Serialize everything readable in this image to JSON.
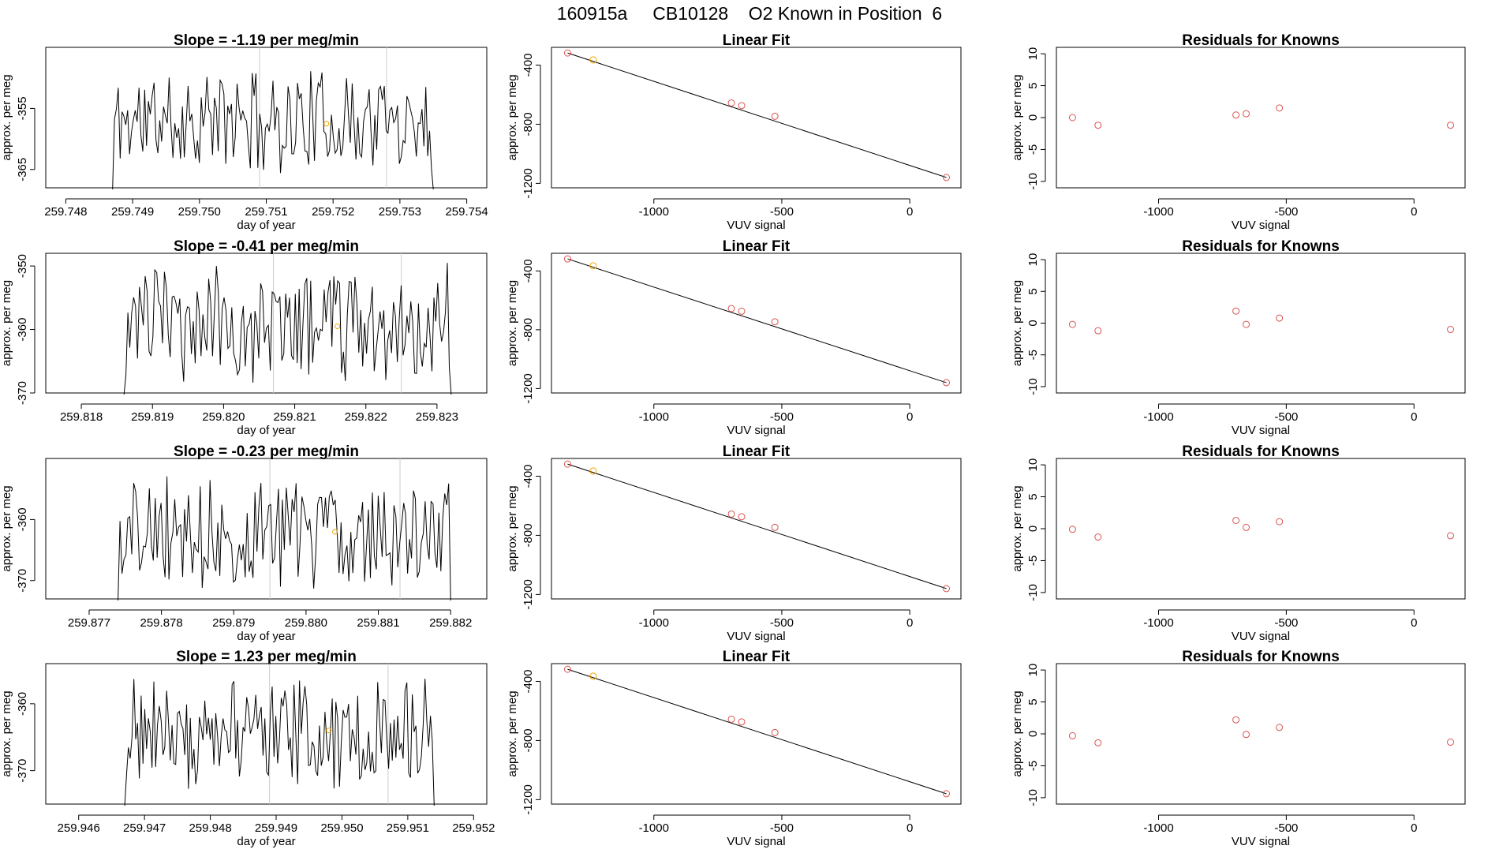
{
  "header": {
    "title": "160915a     CB10128    O2 Known in Position  6",
    "run_id": "160915a",
    "cylinder": "CB10128",
    "label": "O2 Known in Position  6"
  },
  "colors": {
    "trace": "#000000",
    "known_point": "#d9534f",
    "highlight_point": "#f0a500",
    "reference_line": "#cccccc",
    "fit_line": "#000000"
  },
  "chart_data": [
    {
      "panel": "row1-timeseries",
      "type": "line",
      "title": "Slope =  -1.19  per meg/min",
      "xlabel": "day of year",
      "ylabel": "approx. per meg",
      "xlim": [
        259.7477,
        259.7543
      ],
      "ylim": [
        -368,
        -345
      ],
      "xticks": [
        259.748,
        259.749,
        259.75,
        259.751,
        259.752,
        259.753,
        259.754
      ],
      "xtick_labels": [
        "259.748",
        "259.749",
        "259.750",
        "259.751",
        "259.752",
        "259.753",
        "259.754"
      ],
      "yticks": [
        -365,
        -355
      ],
      "ytick_labels": [
        "-365",
        "-355"
      ],
      "x_start": 259.7487,
      "x_end": 259.7535,
      "vlines": [
        259.7509,
        259.7528
      ],
      "marker": {
        "x": 259.7519,
        "y": -357.5
      },
      "seed": 11,
      "center": -357,
      "amp": 7.5
    },
    {
      "panel": "row1-linearfit",
      "type": "scatter",
      "title": "Linear Fit",
      "xlabel": "VUV signal",
      "ylabel": "approx. per meg",
      "xlim": [
        -1400,
        200
      ],
      "ylim": [
        -1230,
        -280
      ],
      "xticks": [
        -1000,
        -500,
        0
      ],
      "xtick_labels": [
        "-1000",
        "-500",
        "0"
      ],
      "yticks": [
        -1200,
        -800,
        -400
      ],
      "ytick_labels": [
        "-1200",
        "-800",
        "-400"
      ],
      "points": [
        {
          "x": -1337,
          "y": -318,
          "color": "known"
        },
        {
          "x": -1237,
          "y": -365,
          "color": "highlight"
        },
        {
          "x": -697,
          "y": -656,
          "color": "known"
        },
        {
          "x": -657,
          "y": -674,
          "color": "known"
        },
        {
          "x": -527,
          "y": -746,
          "color": "known"
        },
        {
          "x": 143,
          "y": -1160,
          "color": "known"
        }
      ],
      "fit_line": {
        "x1": -1337,
        "y1": -318,
        "x2": 143,
        "y2": -1160
      }
    },
    {
      "panel": "row1-residuals",
      "type": "scatter",
      "title": "Residuals for Knowns",
      "xlabel": "VUV signal",
      "ylabel": "approx. per meg",
      "xlim": [
        -1400,
        200
      ],
      "ylim": [
        -11,
        11
      ],
      "xticks": [
        -1000,
        -500,
        0
      ],
      "xtick_labels": [
        "-1000",
        "-500",
        "0"
      ],
      "yticks": [
        -10,
        -5,
        0,
        5,
        10
      ],
      "ytick_labels": [
        "-10",
        "-5",
        "0",
        "5",
        "10"
      ],
      "points": [
        {
          "x": -1337,
          "y": 0.0
        },
        {
          "x": -1237,
          "y": -1.2
        },
        {
          "x": -697,
          "y": 0.4
        },
        {
          "x": -657,
          "y": 0.6
        },
        {
          "x": -527,
          "y": 1.5
        },
        {
          "x": 143,
          "y": -1.2
        }
      ]
    },
    {
      "panel": "row2-timeseries",
      "type": "line",
      "title": "Slope =  -0.41  per meg/min",
      "xlabel": "day of year",
      "ylabel": "approx. per meg",
      "xlim": [
        259.8175,
        259.8237
      ],
      "ylim": [
        -370,
        -348
      ],
      "xticks": [
        259.818,
        259.819,
        259.82,
        259.821,
        259.822,
        259.823
      ],
      "xtick_labels": [
        "259.818",
        "259.819",
        "259.820",
        "259.821",
        "259.822",
        "259.823"
      ],
      "yticks": [
        -370,
        -360,
        -350
      ],
      "ytick_labels": [
        "-370",
        "-360",
        "-350"
      ],
      "x_start": 259.8186,
      "x_end": 259.8232,
      "vlines": [
        259.8207,
        259.8225
      ],
      "marker": {
        "x": 259.8216,
        "y": -359.5
      },
      "seed": 23,
      "center": -359,
      "amp": 8.5
    },
    {
      "panel": "row2-linearfit",
      "type": "scatter",
      "title": "Linear Fit",
      "xlabel": "VUV signal",
      "ylabel": "approx. per meg",
      "xlim": [
        -1400,
        200
      ],
      "ylim": [
        -1230,
        -280
      ],
      "xticks": [
        -1000,
        -500,
        0
      ],
      "xtick_labels": [
        "-1000",
        "-500",
        "0"
      ],
      "yticks": [
        -1200,
        -800,
        -400
      ],
      "ytick_labels": [
        "-1200",
        "-800",
        "-400"
      ],
      "points": [
        {
          "x": -1337,
          "y": -318,
          "color": "known"
        },
        {
          "x": -1237,
          "y": -365,
          "color": "highlight"
        },
        {
          "x": -697,
          "y": -656,
          "color": "known"
        },
        {
          "x": -657,
          "y": -674,
          "color": "known"
        },
        {
          "x": -527,
          "y": -746,
          "color": "known"
        },
        {
          "x": 143,
          "y": -1160,
          "color": "known"
        }
      ],
      "fit_line": {
        "x1": -1337,
        "y1": -318,
        "x2": 143,
        "y2": -1160
      }
    },
    {
      "panel": "row2-residuals",
      "type": "scatter",
      "title": "Residuals for Knowns",
      "xlabel": "VUV signal",
      "ylabel": "approx. per meg",
      "xlim": [
        -1400,
        200
      ],
      "ylim": [
        -11,
        11
      ],
      "xticks": [
        -1000,
        -500,
        0
      ],
      "xtick_labels": [
        "-1000",
        "-500",
        "0"
      ],
      "yticks": [
        -10,
        -5,
        0,
        5,
        10
      ],
      "ytick_labels": [
        "-10",
        "-5",
        "0",
        "5",
        "10"
      ],
      "points": [
        {
          "x": -1337,
          "y": -0.2
        },
        {
          "x": -1237,
          "y": -1.2
        },
        {
          "x": -697,
          "y": 1.9
        },
        {
          "x": -657,
          "y": -0.2
        },
        {
          "x": -527,
          "y": 0.8
        },
        {
          "x": 143,
          "y": -1.0
        }
      ]
    },
    {
      "panel": "row3-timeseries",
      "type": "line",
      "title": "Slope =  -0.23  per meg/min",
      "xlabel": "day of year",
      "ylabel": "approx. per meg",
      "xlim": [
        259.8764,
        259.8825
      ],
      "ylim": [
        -373,
        -350
      ],
      "xticks": [
        259.877,
        259.878,
        259.879,
        259.88,
        259.881,
        259.882
      ],
      "xtick_labels": [
        "259.877",
        "259.878",
        "259.879",
        "259.880",
        "259.881",
        "259.882"
      ],
      "yticks": [
        -370,
        -360
      ],
      "ytick_labels": [
        "-370",
        "-360"
      ],
      "x_start": 259.8774,
      "x_end": 259.882,
      "vlines": [
        259.8795,
        259.8813
      ],
      "marker": {
        "x": 259.8804,
        "y": -362.0
      },
      "seed": 37,
      "center": -362,
      "amp": 8.0
    },
    {
      "panel": "row3-linearfit",
      "type": "scatter",
      "title": "Linear Fit",
      "xlabel": "VUV signal",
      "ylabel": "approx. per meg",
      "xlim": [
        -1400,
        200
      ],
      "ylim": [
        -1230,
        -280
      ],
      "xticks": [
        -1000,
        -500,
        0
      ],
      "xtick_labels": [
        "-1000",
        "-500",
        "0"
      ],
      "yticks": [
        -1200,
        -800,
        -400
      ],
      "ytick_labels": [
        "-1200",
        "-800",
        "-400"
      ],
      "points": [
        {
          "x": -1337,
          "y": -318,
          "color": "known"
        },
        {
          "x": -1237,
          "y": -365,
          "color": "highlight"
        },
        {
          "x": -697,
          "y": -656,
          "color": "known"
        },
        {
          "x": -657,
          "y": -674,
          "color": "known"
        },
        {
          "x": -527,
          "y": -746,
          "color": "known"
        },
        {
          "x": 143,
          "y": -1160,
          "color": "known"
        }
      ],
      "fit_line": {
        "x1": -1337,
        "y1": -318,
        "x2": 143,
        "y2": -1160
      }
    },
    {
      "panel": "row3-residuals",
      "type": "scatter",
      "title": "Residuals for Knowns",
      "xlabel": "VUV signal",
      "ylabel": "approx. per meg",
      "xlim": [
        -1400,
        200
      ],
      "ylim": [
        -11,
        11
      ],
      "xticks": [
        -1000,
        -500,
        0
      ],
      "xtick_labels": [
        "-1000",
        "-500",
        "0"
      ],
      "yticks": [
        -10,
        -5,
        0,
        5,
        10
      ],
      "ytick_labels": [
        "-10",
        "-5",
        "0",
        "5",
        "10"
      ],
      "points": [
        {
          "x": -1337,
          "y": -0.1
        },
        {
          "x": -1237,
          "y": -1.3
        },
        {
          "x": -697,
          "y": 1.3
        },
        {
          "x": -657,
          "y": 0.2
        },
        {
          "x": -527,
          "y": 1.1
        },
        {
          "x": 143,
          "y": -1.1
        }
      ]
    },
    {
      "panel": "row4-timeseries",
      "type": "line",
      "title": "Slope =  1.23  per meg/min",
      "xlabel": "day of year",
      "ylabel": "approx. per meg",
      "xlim": [
        259.9455,
        259.9522
      ],
      "ylim": [
        -375,
        -354
      ],
      "xticks": [
        259.946,
        259.947,
        259.948,
        259.949,
        259.95,
        259.951,
        259.952
      ],
      "xtick_labels": [
        "259.946",
        "259.947",
        "259.948",
        "259.949",
        "259.950",
        "259.951",
        "259.952"
      ],
      "yticks": [
        -370,
        -360
      ],
      "ytick_labels": [
        "-370",
        "-360"
      ],
      "x_start": 259.9467,
      "x_end": 259.9514,
      "vlines": [
        259.9489,
        259.9507
      ],
      "marker": {
        "x": 259.9498,
        "y": -364.0
      },
      "seed": 51,
      "center": -364,
      "amp": 7.5
    },
    {
      "panel": "row4-linearfit",
      "type": "scatter",
      "title": "Linear Fit",
      "xlabel": "VUV signal",
      "ylabel": "approx. per meg",
      "xlim": [
        -1400,
        200
      ],
      "ylim": [
        -1230,
        -280
      ],
      "xticks": [
        -1000,
        -500,
        0
      ],
      "xtick_labels": [
        "-1000",
        "-500",
        "0"
      ],
      "yticks": [
        -1200,
        -800,
        -400
      ],
      "ytick_labels": [
        "-1200",
        "-800",
        "-400"
      ],
      "points": [
        {
          "x": -1337,
          "y": -318,
          "color": "known"
        },
        {
          "x": -1237,
          "y": -365,
          "color": "highlight"
        },
        {
          "x": -697,
          "y": -656,
          "color": "known"
        },
        {
          "x": -657,
          "y": -674,
          "color": "known"
        },
        {
          "x": -527,
          "y": -746,
          "color": "known"
        },
        {
          "x": 143,
          "y": -1160,
          "color": "known"
        }
      ],
      "fit_line": {
        "x1": -1337,
        "y1": -318,
        "x2": 143,
        "y2": -1160
      }
    },
    {
      "panel": "row4-residuals",
      "type": "scatter",
      "title": "Residuals for Knowns",
      "xlabel": "VUV signal",
      "ylabel": "approx. per meg",
      "xlim": [
        -1400,
        200
      ],
      "ylim": [
        -11,
        11
      ],
      "xticks": [
        -1000,
        -500,
        0
      ],
      "xtick_labels": [
        "-1000",
        "-500",
        "0"
      ],
      "yticks": [
        -10,
        -5,
        0,
        5,
        10
      ],
      "ytick_labels": [
        "-10",
        "-5",
        "0",
        "5",
        "10"
      ],
      "points": [
        {
          "x": -1337,
          "y": -0.3
        },
        {
          "x": -1237,
          "y": -1.4
        },
        {
          "x": -697,
          "y": 2.2
        },
        {
          "x": -657,
          "y": -0.1
        },
        {
          "x": -527,
          "y": 1.0
        },
        {
          "x": 143,
          "y": -1.3
        }
      ]
    }
  ]
}
